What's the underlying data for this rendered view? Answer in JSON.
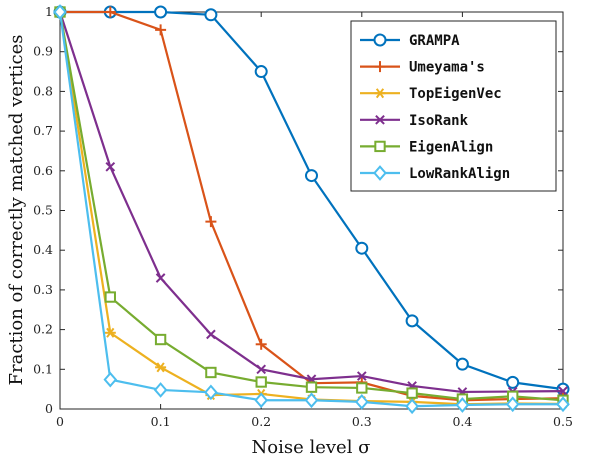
{
  "chart_data": {
    "type": "line",
    "xlabel": "Noise level σ",
    "ylabel": "Fraction of correctly matched vertices",
    "xlim": [
      0,
      0.5
    ],
    "ylim": [
      0,
      1
    ],
    "x_ticks": [
      "0",
      "0.1",
      "0.2",
      "0.3",
      "0.4",
      "0.5"
    ],
    "y_ticks": [
      "0",
      "0.1",
      "0.2",
      "0.3",
      "0.4",
      "0.5",
      "0.6",
      "0.7",
      "0.8",
      "0.9",
      "1"
    ],
    "grid": false,
    "legend_position": "top-right",
    "x": [
      0,
      0.05,
      0.1,
      0.15,
      0.2,
      0.25,
      0.3,
      0.35,
      0.4,
      0.45,
      0.5
    ],
    "series": [
      {
        "name": "GRAMPA",
        "color": "#0072BD",
        "marker": "circle",
        "values": [
          1.0,
          1.0,
          1.0,
          0.993,
          0.85,
          0.588,
          0.405,
          0.222,
          0.113,
          0.067,
          0.05
        ]
      },
      {
        "name": "Umeyama's",
        "color": "#D95319",
        "marker": "plus",
        "values": [
          1.0,
          1.0,
          0.955,
          0.472,
          0.163,
          0.065,
          0.067,
          0.033,
          0.022,
          0.025,
          0.027
        ]
      },
      {
        "name": "TopEigenVec",
        "color": "#EDB120",
        "marker": "asterisk",
        "values": [
          1.0,
          0.192,
          0.105,
          0.035,
          0.038,
          0.024,
          0.02,
          0.018,
          0.012,
          0.014,
          0.013
        ]
      },
      {
        "name": "IsoRank",
        "color": "#7E2F8E",
        "marker": "x",
        "values": [
          1.0,
          0.61,
          0.33,
          0.188,
          0.1,
          0.075,
          0.083,
          0.058,
          0.043,
          0.044,
          0.045
        ]
      },
      {
        "name": "EigenAlign",
        "color": "#77AC30",
        "marker": "square",
        "values": [
          1.0,
          0.282,
          0.175,
          0.092,
          0.068,
          0.055,
          0.053,
          0.04,
          0.025,
          0.032,
          0.022
        ]
      },
      {
        "name": "LowRankAlign",
        "color": "#4DBEEE",
        "marker": "diamond",
        "values": [
          1.0,
          0.074,
          0.048,
          0.042,
          0.022,
          0.022,
          0.018,
          0.007,
          0.01,
          0.012,
          0.012
        ]
      }
    ]
  }
}
